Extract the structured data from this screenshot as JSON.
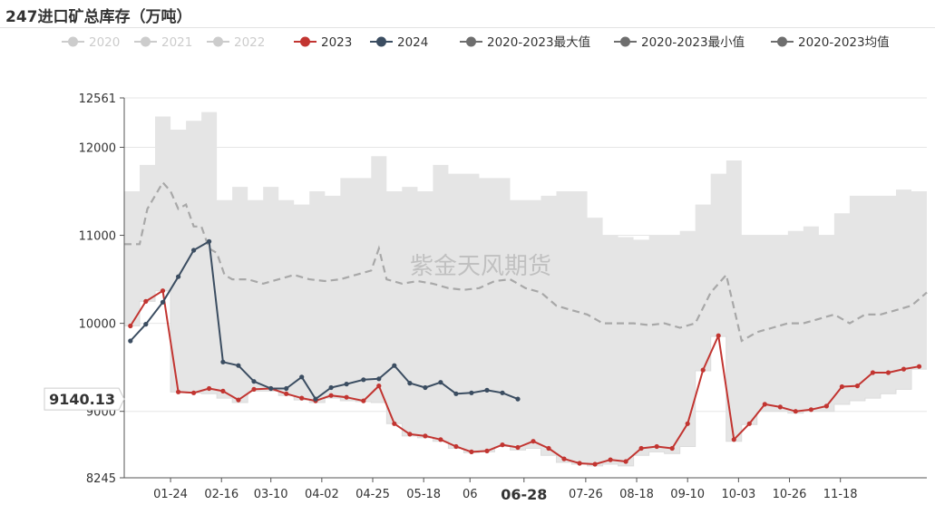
{
  "title": "247进口矿总库存（万吨）",
  "colors": {
    "band": "#e5e5e5",
    "avg": "#a8a8a8",
    "s2023": "#c23531",
    "s2024": "#3b4d61",
    "legend_inactive": "#cccccc",
    "legend_gray": "#6e6e6e",
    "axis": "#555555",
    "grid": "#e6e6e6"
  },
  "chart_data": {
    "type": "line",
    "title": "247进口矿总库存（万吨）",
    "watermark": "紫金天风期货",
    "legend_position": "top",
    "legend": [
      {
        "name": "2020",
        "active": false,
        "icon": "circle-line-icon"
      },
      {
        "name": "2021",
        "active": false,
        "icon": "circle-line-icon"
      },
      {
        "name": "2022",
        "active": false,
        "icon": "circle-line-icon"
      },
      {
        "name": "2023",
        "active": true,
        "icon": "circle-line-icon"
      },
      {
        "name": "2024",
        "active": true,
        "icon": "circle-line-icon"
      },
      {
        "name": "2020-2023最大值",
        "active": true,
        "icon": "circle-line-icon"
      },
      {
        "name": "2020-2023最小值",
        "active": true,
        "icon": "circle-line-icon"
      },
      {
        "name": "2020-2023均值",
        "active": true,
        "icon": "circle-line-icon"
      }
    ],
    "y_axis": {
      "min": 8245,
      "max": 12561,
      "ticks": [
        8245,
        9000,
        10000,
        11000,
        12000,
        12561
      ],
      "grid": true
    },
    "x_axis": {
      "min_week": 0,
      "max_week": 52,
      "tick_labels": [
        {
          "label": "01-24",
          "week": 3
        },
        {
          "label": "02-16",
          "week": 6.3
        },
        {
          "label": "03-10",
          "week": 9.5
        },
        {
          "label": "04-02",
          "week": 12.8
        },
        {
          "label": "04-25",
          "week": 16.1
        },
        {
          "label": "05-18",
          "week": 19.4
        },
        {
          "label": "06",
          "week": 22.4
        },
        {
          "label": "07-26",
          "week": 29.9
        },
        {
          "label": "08-18",
          "week": 33.2
        },
        {
          "label": "09-10",
          "week": 36.5
        },
        {
          "label": "10-03",
          "week": 39.8
        },
        {
          "label": "10-26",
          "week": 43.1
        },
        {
          "label": "11-18",
          "week": 46.4
        }
      ],
      "pointer_label": {
        "label": "06-28",
        "week": 25.9
      }
    },
    "pointer_y": {
      "label": "9140.13",
      "value": 9140.13
    },
    "series": [
      {
        "name": "2023",
        "type": "line",
        "x": [
          0.4,
          1.4,
          2.5,
          3.5,
          4.5,
          5.5,
          6.4,
          7.4,
          8.4,
          9.5,
          10.5,
          11.5,
          12.4,
          13.4,
          14.4,
          15.5,
          16.5,
          17.5,
          18.5,
          19.5,
          20.5,
          21.5,
          22.5,
          23.5,
          24.5,
          25.5,
          26.5,
          27.5,
          28.5,
          29.5,
          30.5,
          31.5,
          32.5,
          33.5,
          34.5,
          35.5,
          36.5,
          37.5,
          38.5,
          39.5,
          40.5,
          41.5,
          42.5,
          43.5,
          44.5,
          45.5,
          46.5,
          47.5,
          48.5,
          49.5,
          50.5,
          51.5
        ],
        "values": [
          9970,
          10250,
          10370,
          9220,
          9210,
          9260,
          9230,
          9130,
          9250,
          9260,
          9200,
          9150,
          9120,
          9180,
          9160,
          9120,
          9290,
          8860,
          8740,
          8720,
          8680,
          8600,
          8540,
          8550,
          8620,
          8590,
          8660,
          8580,
          8460,
          8410,
          8400,
          8450,
          8430,
          8580,
          8600,
          8580,
          8860,
          9470,
          9860,
          8680,
          8860,
          9080,
          9050,
          9000,
          9020,
          9060,
          9280,
          9290,
          9440,
          9440,
          9480,
          9510
        ]
      },
      {
        "name": "2024",
        "type": "line",
        "x": [
          0.4,
          1.4,
          2.5,
          3.5,
          4.5,
          5.5,
          6.4,
          7.4,
          8.4,
          9.5,
          10.5,
          11.5,
          12.4,
          13.4,
          14.4,
          15.5,
          16.5,
          17.5,
          18.5,
          19.5,
          20.5,
          21.5,
          22.5,
          23.5,
          24.5,
          25.5
        ],
        "values": [
          9800,
          9990,
          10240,
          10530,
          10830,
          10930,
          9560,
          9520,
          9340,
          9260,
          9260,
          9390,
          9140,
          9270,
          9310,
          9360,
          9370,
          9520,
          9320,
          9270,
          9330,
          9200,
          9210,
          9240,
          9210,
          9140
        ]
      },
      {
        "name": "2020-2023最大值",
        "type": "step",
        "x": [
          0,
          1,
          2,
          3,
          4,
          5,
          6,
          7,
          8,
          9,
          10,
          11,
          12,
          13,
          14,
          15,
          16,
          17,
          18,
          19,
          20,
          21,
          22,
          23,
          24,
          25,
          26,
          27,
          28,
          29,
          30,
          31,
          32,
          33,
          34,
          35,
          36,
          37,
          38,
          39,
          40,
          41,
          42,
          43,
          44,
          45,
          46,
          47,
          48,
          49,
          50,
          51,
          52
        ],
        "values": [
          11500,
          11800,
          12350,
          12200,
          12300,
          12400,
          11400,
          11550,
          11400,
          11550,
          11400,
          11350,
          11500,
          11450,
          11650,
          11650,
          11900,
          11500,
          11550,
          11500,
          11800,
          11700,
          11700,
          11650,
          11650,
          11400,
          11400,
          11450,
          11500,
          11500,
          11200,
          11000,
          10980,
          10950,
          11000,
          11000,
          11050,
          11350,
          11700,
          11850,
          11000,
          11000,
          11000,
          11050,
          11100,
          11000,
          11250,
          11450,
          11450,
          11450,
          11520,
          11500,
          11500
        ]
      },
      {
        "name": "2020-2023最小值",
        "type": "step",
        "x": [
          0,
          1,
          2,
          3,
          4,
          5,
          6,
          7,
          8,
          9,
          10,
          11,
          12,
          13,
          14,
          15,
          16,
          17,
          18,
          19,
          20,
          21,
          22,
          23,
          24,
          25,
          26,
          27,
          28,
          29,
          30,
          31,
          32,
          33,
          34,
          35,
          36,
          37,
          38,
          39,
          40,
          41,
          42,
          43,
          44,
          45,
          46,
          47,
          48,
          49,
          50,
          51,
          52
        ],
        "values": [
          9970,
          10250,
          10370,
          9220,
          9210,
          9200,
          9150,
          9100,
          9230,
          9230,
          9180,
          9130,
          9100,
          9150,
          9120,
          9110,
          9100,
          8860,
          8720,
          8700,
          8660,
          8580,
          8530,
          8540,
          8600,
          8560,
          8580,
          8500,
          8420,
          8400,
          8380,
          8400,
          8380,
          8500,
          8540,
          8520,
          8600,
          9460,
          9850,
          8660,
          8850,
          9000,
          9000,
          8980,
          9000,
          9000,
          9080,
          9120,
          9150,
          9200,
          9250,
          9480,
          9480
        ]
      },
      {
        "name": "2020-2023均值",
        "type": "line",
        "x": [
          0,
          1,
          1.5,
          2,
          2.5,
          3,
          3.5,
          4,
          4.5,
          5,
          5.5,
          6,
          6.5,
          7,
          8,
          9,
          10,
          11,
          12,
          13,
          14,
          15,
          16,
          16.5,
          17,
          18,
          19,
          20,
          21,
          22,
          23,
          24,
          25,
          26,
          27,
          28,
          29,
          30,
          31,
          32,
          33,
          34,
          35,
          36,
          37,
          38,
          39,
          40,
          41,
          42,
          43,
          44,
          45,
          46,
          47,
          48,
          49,
          50,
          51,
          52
        ],
        "values": [
          10900,
          10900,
          11300,
          11450,
          11600,
          11500,
          11300,
          11350,
          11100,
          11100,
          10850,
          10800,
          10550,
          10500,
          10500,
          10450,
          10500,
          10550,
          10500,
          10480,
          10500,
          10550,
          10600,
          10850,
          10500,
          10450,
          10480,
          10450,
          10400,
          10380,
          10400,
          10480,
          10500,
          10400,
          10350,
          10200,
          10150,
          10100,
          10000,
          10000,
          10000,
          9980,
          10000,
          9950,
          10000,
          10350,
          10550,
          9800,
          9900,
          9950,
          10000,
          10000,
          10050,
          10100,
          10000,
          10100,
          10100,
          10150,
          10200,
          10350
        ]
      }
    ]
  }
}
